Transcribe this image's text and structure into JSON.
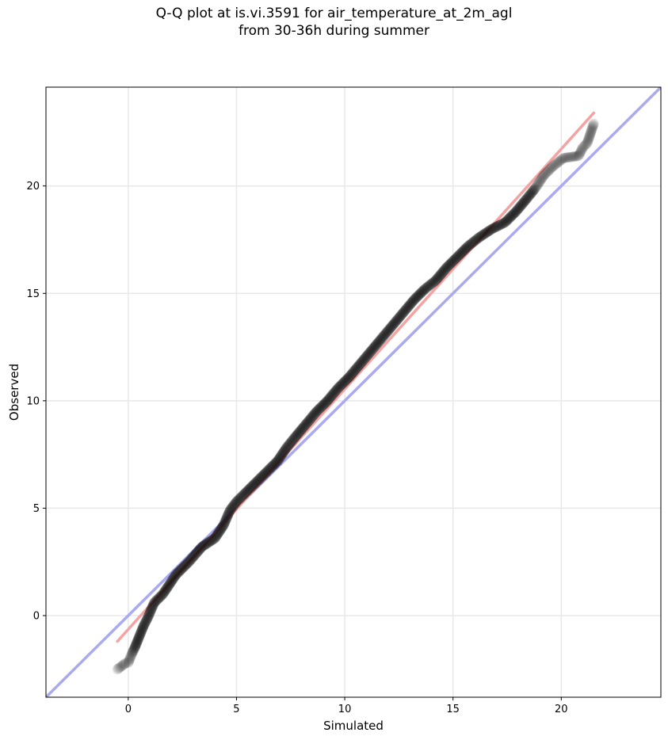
{
  "chart_data": {
    "type": "scatter",
    "title_line1": "Q-Q plot at is.vi.3591 for air_temperature_at_2m_agl",
    "title_line2": "from 30-36h during summer",
    "xlabel": "Simulated",
    "ylabel": "Observed",
    "xlim": [
      -3.8,
      24.6
    ],
    "ylim": [
      -3.8,
      24.6
    ],
    "xticks": [
      0,
      5,
      10,
      15,
      20
    ],
    "yticks": [
      0,
      5,
      10,
      15,
      20
    ],
    "grid": true,
    "reference_lines": [
      {
        "kind": "1:1 line",
        "color": "#aaaaf0",
        "x": [
          -3.8,
          24.6
        ],
        "y": [
          -3.8,
          24.6
        ]
      },
      {
        "kind": "fit line",
        "color": "#f4a3a3",
        "x": [
          -0.5,
          21.5
        ],
        "y": [
          -1.2,
          23.4
        ]
      }
    ],
    "quantiles": {
      "simulated": [
        -0.5,
        -0.1,
        0.0,
        0.2,
        0.3,
        0.5,
        0.7,
        0.9,
        1.2,
        1.6,
        2.2,
        2.8,
        3.4,
        4.0,
        4.4,
        4.7,
        5.0,
        5.4,
        5.9,
        6.4,
        6.9,
        7.3,
        7.7,
        8.2,
        8.7,
        9.2,
        9.7,
        10.2,
        10.7,
        11.2,
        11.7,
        12.2,
        12.7,
        13.2,
        13.7,
        14.2,
        14.7,
        15.2,
        15.7,
        16.2,
        16.8,
        17.4,
        17.9,
        18.4,
        18.8,
        19.2,
        19.6,
        20.1,
        20.8,
        21.0,
        21.2,
        21.5
      ],
      "observed": [
        -2.5,
        -2.2,
        -2.2,
        -1.7,
        -1.5,
        -1.0,
        -0.5,
        -0.1,
        0.6,
        1.0,
        1.9,
        2.5,
        3.2,
        3.6,
        4.2,
        4.9,
        5.3,
        5.7,
        6.2,
        6.7,
        7.2,
        7.8,
        8.3,
        8.9,
        9.5,
        10.0,
        10.6,
        11.1,
        11.7,
        12.3,
        12.9,
        13.5,
        14.1,
        14.7,
        15.2,
        15.6,
        16.2,
        16.7,
        17.2,
        17.6,
        18.0,
        18.3,
        18.8,
        19.4,
        19.9,
        20.5,
        20.9,
        21.3,
        21.4,
        21.8,
        22.0,
        22.9
      ]
    },
    "point_color": "#000000"
  }
}
